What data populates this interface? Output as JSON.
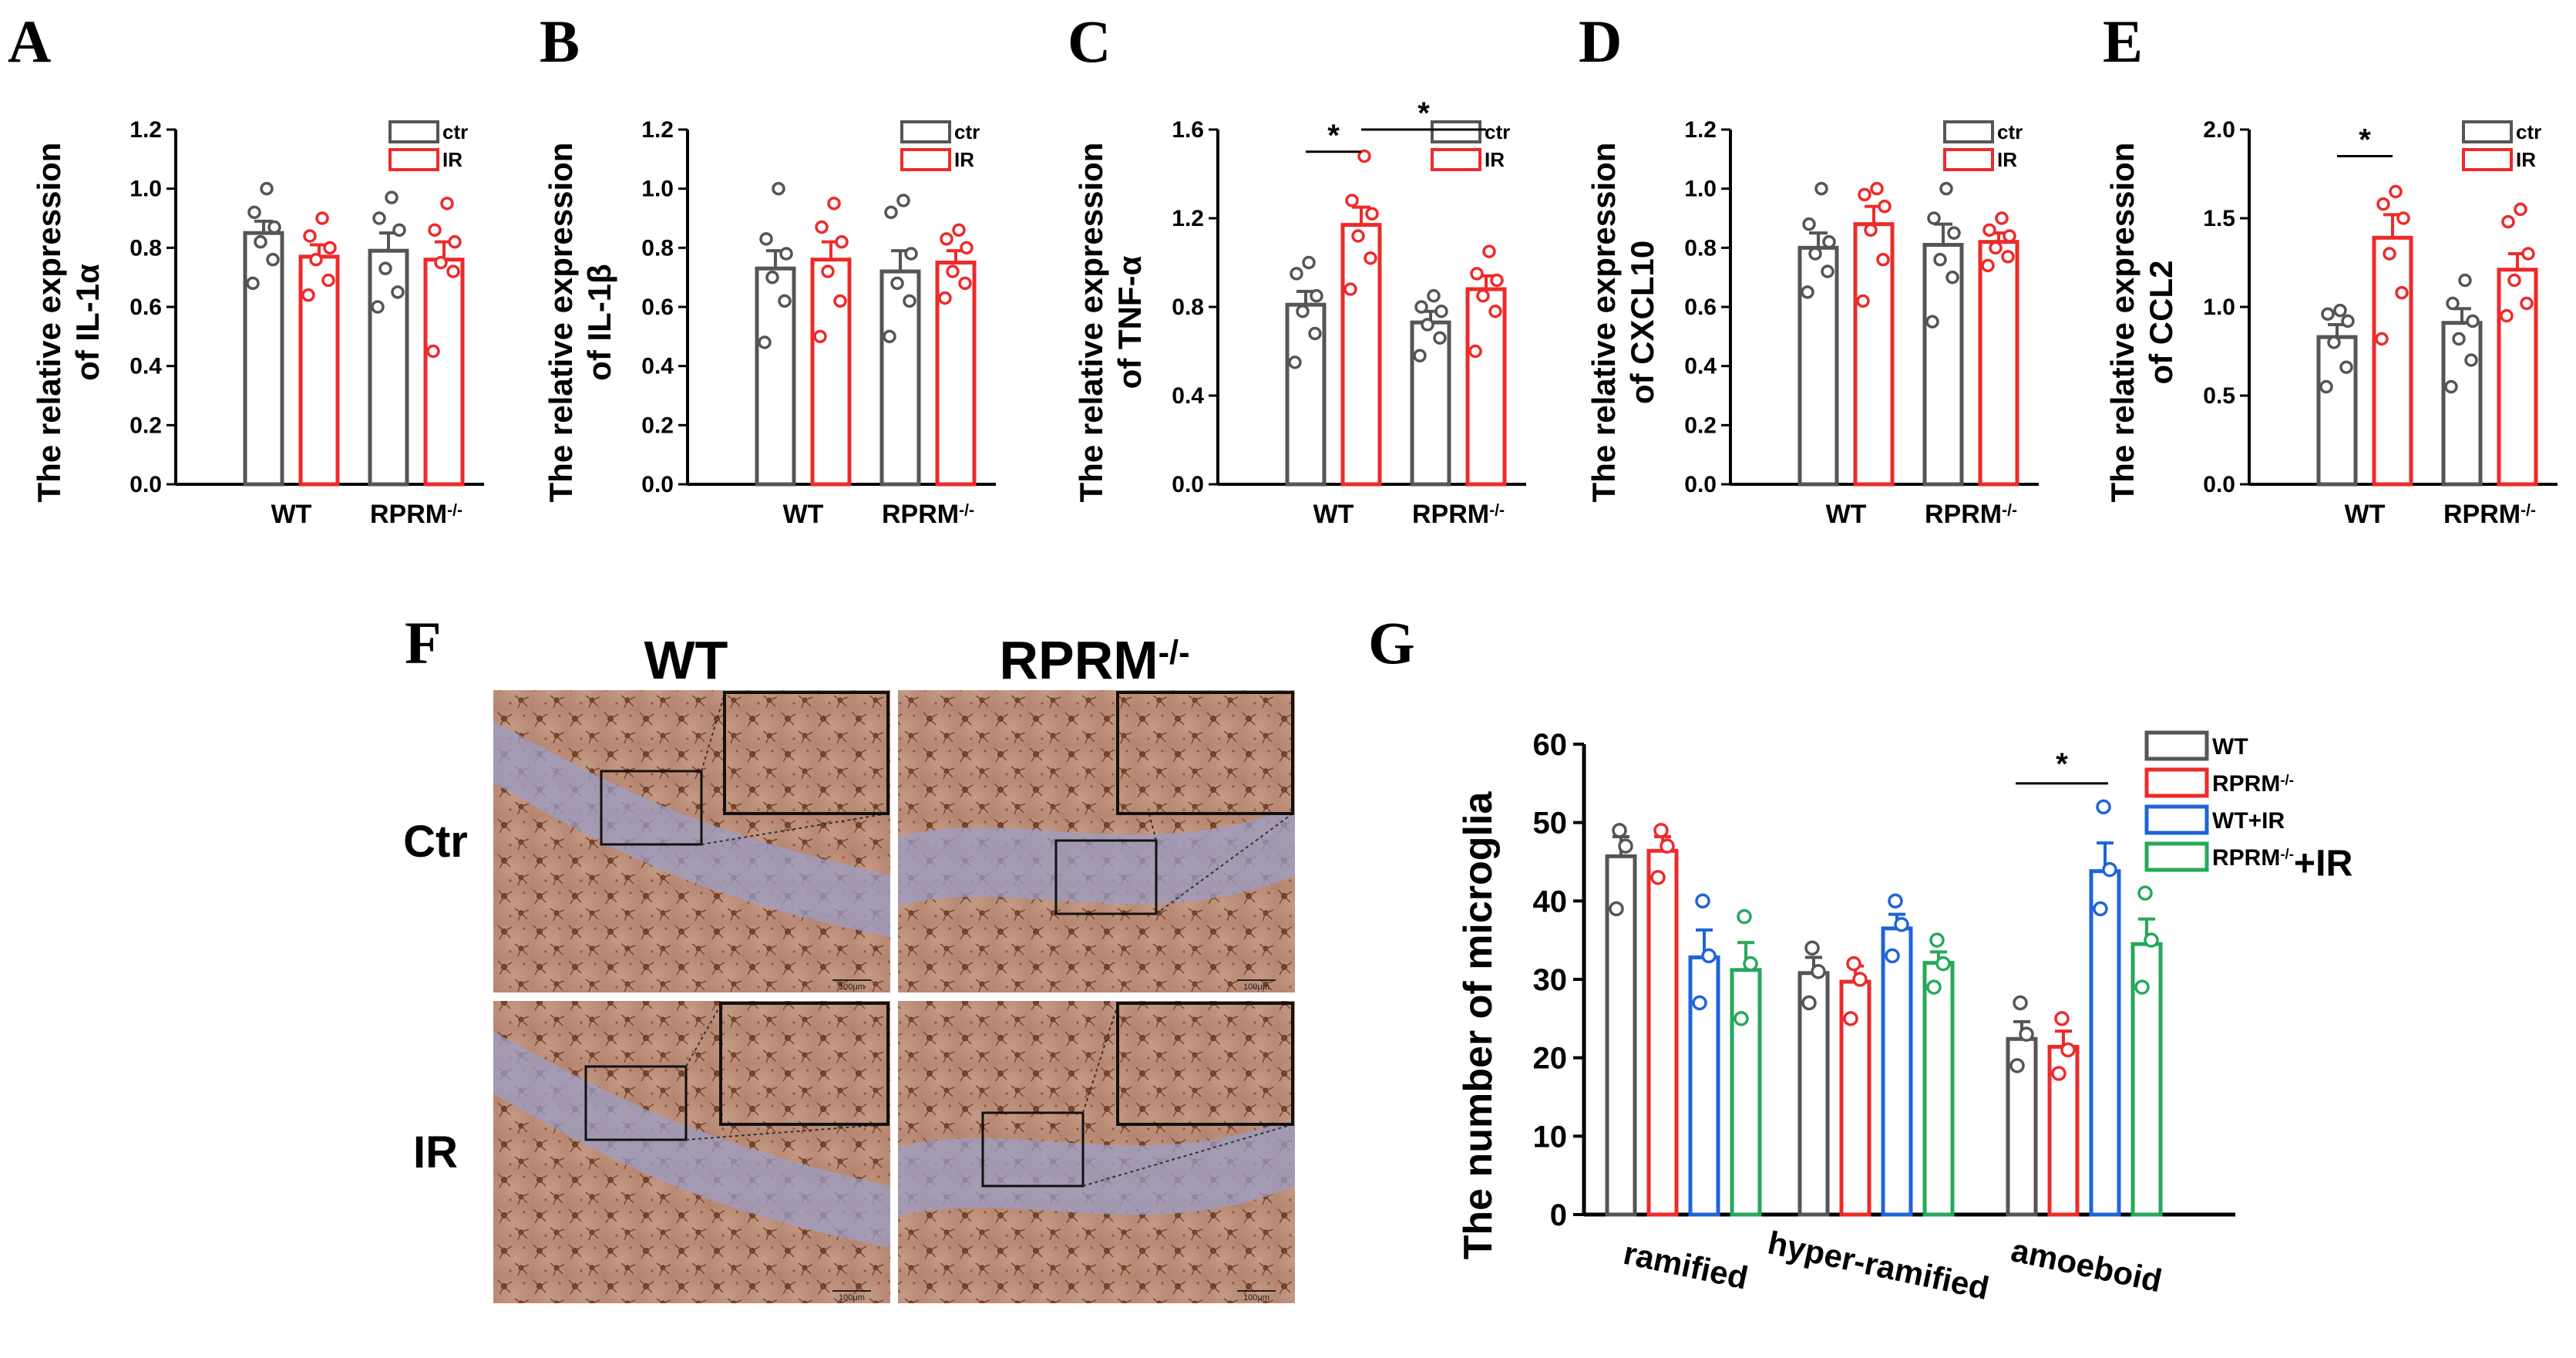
{
  "colors": {
    "ctr": "#555555",
    "ir": "#ee2a2a",
    "wt": "#555555",
    "rprm": "#ee2a2a",
    "wt_ir": "#1f64d8",
    "rprm_ir": "#27a85a"
  },
  "chart_data": [
    {
      "panel": "A",
      "type": "bar",
      "ylabel_line1": "The relative expression",
      "ylabel_line2": "of IL-1α",
      "ylim": [
        0,
        1.2
      ],
      "yticks": [
        "0.0",
        "0.2",
        "0.4",
        "0.6",
        "0.8",
        "1.0",
        "1.2"
      ],
      "categories": [
        "WT",
        "RPRM"
      ],
      "superscript": [
        "",
        "-/-"
      ],
      "legend": [
        "ctr",
        "IR"
      ],
      "series": [
        {
          "name": "ctr",
          "values": [
            0.85,
            0.79
          ],
          "errors": [
            0.04,
            0.06
          ],
          "points": [
            [
              0.68,
              0.76,
              0.82,
              0.87,
              0.92,
              1.0
            ],
            [
              0.6,
              0.65,
              0.73,
              0.86,
              0.9,
              0.97
            ]
          ]
        },
        {
          "name": "IR",
          "values": [
            0.77,
            0.76
          ],
          "errors": [
            0.04,
            0.06
          ],
          "points": [
            [
              0.64,
              0.69,
              0.76,
              0.8,
              0.84,
              0.9
            ],
            [
              0.45,
              0.72,
              0.75,
              0.82,
              0.86,
              0.95
            ]
          ]
        }
      ],
      "significance": []
    },
    {
      "panel": "B",
      "type": "bar",
      "ylabel_line1": "The relative expression",
      "ylabel_line2": "of IL-1β",
      "ylim": [
        0,
        1.2
      ],
      "yticks": [
        "0.0",
        "0.2",
        "0.4",
        "0.6",
        "0.8",
        "1.0",
        "1.2"
      ],
      "categories": [
        "WT",
        "RPRM"
      ],
      "superscript": [
        "",
        "-/-"
      ],
      "legend": [
        "ctr",
        "IR"
      ],
      "series": [
        {
          "name": "ctr",
          "values": [
            0.73,
            0.72
          ],
          "errors": [
            0.06,
            0.07
          ],
          "points": [
            [
              0.48,
              0.62,
              0.7,
              0.78,
              0.83,
              1.0
            ],
            [
              0.5,
              0.62,
              0.68,
              0.78,
              0.92,
              0.96
            ]
          ]
        },
        {
          "name": "IR",
          "values": [
            0.76,
            0.75
          ],
          "errors": [
            0.06,
            0.04
          ],
          "points": [
            [
              0.5,
              0.62,
              0.72,
              0.82,
              0.87,
              0.95
            ],
            [
              0.63,
              0.68,
              0.72,
              0.8,
              0.83,
              0.86
            ]
          ]
        }
      ],
      "significance": []
    },
    {
      "panel": "C",
      "type": "bar",
      "ylabel_line1": "The relative expression",
      "ylabel_line2": "of TNF-α",
      "ylim": [
        0,
        1.6
      ],
      "yticks": [
        "0.0",
        "0.4",
        "0.8",
        "1.2",
        "1.6"
      ],
      "categories": [
        "WT",
        "RPRM"
      ],
      "superscript": [
        "",
        "-/-"
      ],
      "legend": [
        "ctr",
        "IR"
      ],
      "series": [
        {
          "name": "ctr",
          "values": [
            0.81,
            0.73
          ],
          "errors": [
            0.06,
            0.05
          ],
          "points": [
            [
              0.55,
              0.68,
              0.78,
              0.85,
              0.95,
              1.0
            ],
            [
              0.58,
              0.66,
              0.72,
              0.78,
              0.8,
              0.85
            ]
          ]
        },
        {
          "name": "IR",
          "values": [
            1.17,
            0.88
          ],
          "errors": [
            0.08,
            0.06
          ],
          "points": [
            [
              0.88,
              1.02,
              1.12,
              1.22,
              1.28,
              1.48
            ],
            [
              0.6,
              0.78,
              0.85,
              0.92,
              0.95,
              1.05
            ]
          ]
        }
      ],
      "significance": [
        {
          "from": [
            0,
            0
          ],
          "to": [
            0,
            1
          ],
          "level": 1.5,
          "label": "*"
        },
        {
          "from": [
            0,
            1
          ],
          "to": [
            1,
            1
          ],
          "level": 1.6,
          "label": "*"
        }
      ]
    },
    {
      "panel": "D",
      "type": "bar",
      "ylabel_line1": "The relative expression",
      "ylabel_line2": "of CXCL10",
      "ylim": [
        0,
        1.2
      ],
      "yticks": [
        "0.0",
        "0.2",
        "0.4",
        "0.6",
        "0.8",
        "1.0",
        "1.2"
      ],
      "categories": [
        "WT",
        "RPRM"
      ],
      "superscript": [
        "",
        "-/-"
      ],
      "legend": [
        "ctr",
        "IR"
      ],
      "series": [
        {
          "name": "ctr",
          "values": [
            0.8,
            0.81
          ],
          "errors": [
            0.05,
            0.07
          ],
          "points": [
            [
              0.65,
              0.72,
              0.78,
              0.82,
              0.88,
              1.0
            ],
            [
              0.55,
              0.7,
              0.76,
              0.85,
              0.9,
              1.0
            ]
          ]
        },
        {
          "name": "IR",
          "values": [
            0.88,
            0.82
          ],
          "errors": [
            0.06,
            0.03
          ],
          "points": [
            [
              0.62,
              0.76,
              0.86,
              0.94,
              0.98,
              1.0
            ],
            [
              0.74,
              0.77,
              0.8,
              0.84,
              0.86,
              0.9
            ]
          ]
        }
      ],
      "significance": []
    },
    {
      "panel": "E",
      "type": "bar",
      "ylabel_line1": "The relative expression",
      "ylabel_line2": "of CCL2",
      "ylim": [
        0,
        2.0
      ],
      "yticks": [
        "0.0",
        "0.5",
        "1.0",
        "1.5",
        "2.0"
      ],
      "categories": [
        "WT",
        "RPRM"
      ],
      "superscript": [
        "",
        "-/-"
      ],
      "legend": [
        "ctr",
        "IR"
      ],
      "series": [
        {
          "name": "ctr",
          "values": [
            0.83,
            0.91
          ],
          "errors": [
            0.07,
            0.08
          ],
          "points": [
            [
              0.55,
              0.66,
              0.8,
              0.92,
              0.96,
              0.98
            ],
            [
              0.55,
              0.7,
              0.82,
              0.92,
              1.02,
              1.15
            ]
          ]
        },
        {
          "name": "IR",
          "values": [
            1.39,
            1.21
          ],
          "errors": [
            0.13,
            0.09
          ],
          "points": [
            [
              0.82,
              1.08,
              1.3,
              1.5,
              1.58,
              1.65
            ],
            [
              0.95,
              1.02,
              1.15,
              1.3,
              1.48,
              1.55
            ]
          ]
        }
      ],
      "significance": [
        {
          "from": [
            0,
            0
          ],
          "to": [
            0,
            1
          ],
          "level": 1.85,
          "label": "*"
        }
      ]
    },
    {
      "panel": "G",
      "type": "bar",
      "ylabel": "The number of microglia",
      "ylim": [
        0,
        60
      ],
      "yticks": [
        "0",
        "10",
        "20",
        "30",
        "40",
        "50",
        "60"
      ],
      "categories": [
        "ramified",
        "hyper-ramified",
        "amoeboid"
      ],
      "legend": [
        {
          "text": "WT",
          "sup": ""
        },
        {
          "text": "RPRM",
          "sup": "-/-"
        },
        {
          "text": "WT+IR",
          "sup": ""
        },
        {
          "text": "RPRM",
          "sup": "-/-",
          "suffix": "+IR"
        }
      ],
      "series": [
        {
          "name": "WT",
          "values": [
            45.7,
            30.8,
            22.4
          ],
          "errors": [
            2.5,
            2.0,
            2.2
          ],
          "points": [
            [
              39,
              47,
              49
            ],
            [
              27,
              31,
              34
            ],
            [
              19,
              23,
              27
            ]
          ]
        },
        {
          "name": "RPRM-/-",
          "values": [
            46.4,
            29.7,
            21.4
          ],
          "errors": [
            1.8,
            2.0,
            2.0
          ],
          "points": [
            [
              43,
              47,
              49
            ],
            [
              25,
              30,
              32
            ],
            [
              18,
              21,
              25
            ]
          ]
        },
        {
          "name": "WT+IR",
          "values": [
            32.8,
            36.5,
            43.8
          ],
          "errors": [
            3.5,
            1.8,
            3.6
          ],
          "points": [
            [
              27,
              33,
              40
            ],
            [
              33,
              37,
              40
            ],
            [
              39,
              44,
              52
            ]
          ]
        },
        {
          "name": "RPRM-/-+IR",
          "values": [
            31.2,
            32.1,
            34.5
          ],
          "errors": [
            3.5,
            1.4,
            3.2
          ],
          "points": [
            [
              25,
              32,
              38
            ],
            [
              29,
              32,
              35
            ],
            [
              29,
              35,
              41
            ]
          ]
        }
      ],
      "significance": [
        {
          "from": [
            2,
            0
          ],
          "to": [
            2,
            2
          ],
          "level": 55,
          "label": "*"
        }
      ]
    }
  ],
  "panelF": {
    "label": "F",
    "columns": [
      {
        "text": "WT",
        "sup": ""
      },
      {
        "text": "RPRM",
        "sup": "-/-"
      }
    ],
    "rows": [
      "Ctr",
      "IR"
    ],
    "scale_bar": "100μm"
  }
}
